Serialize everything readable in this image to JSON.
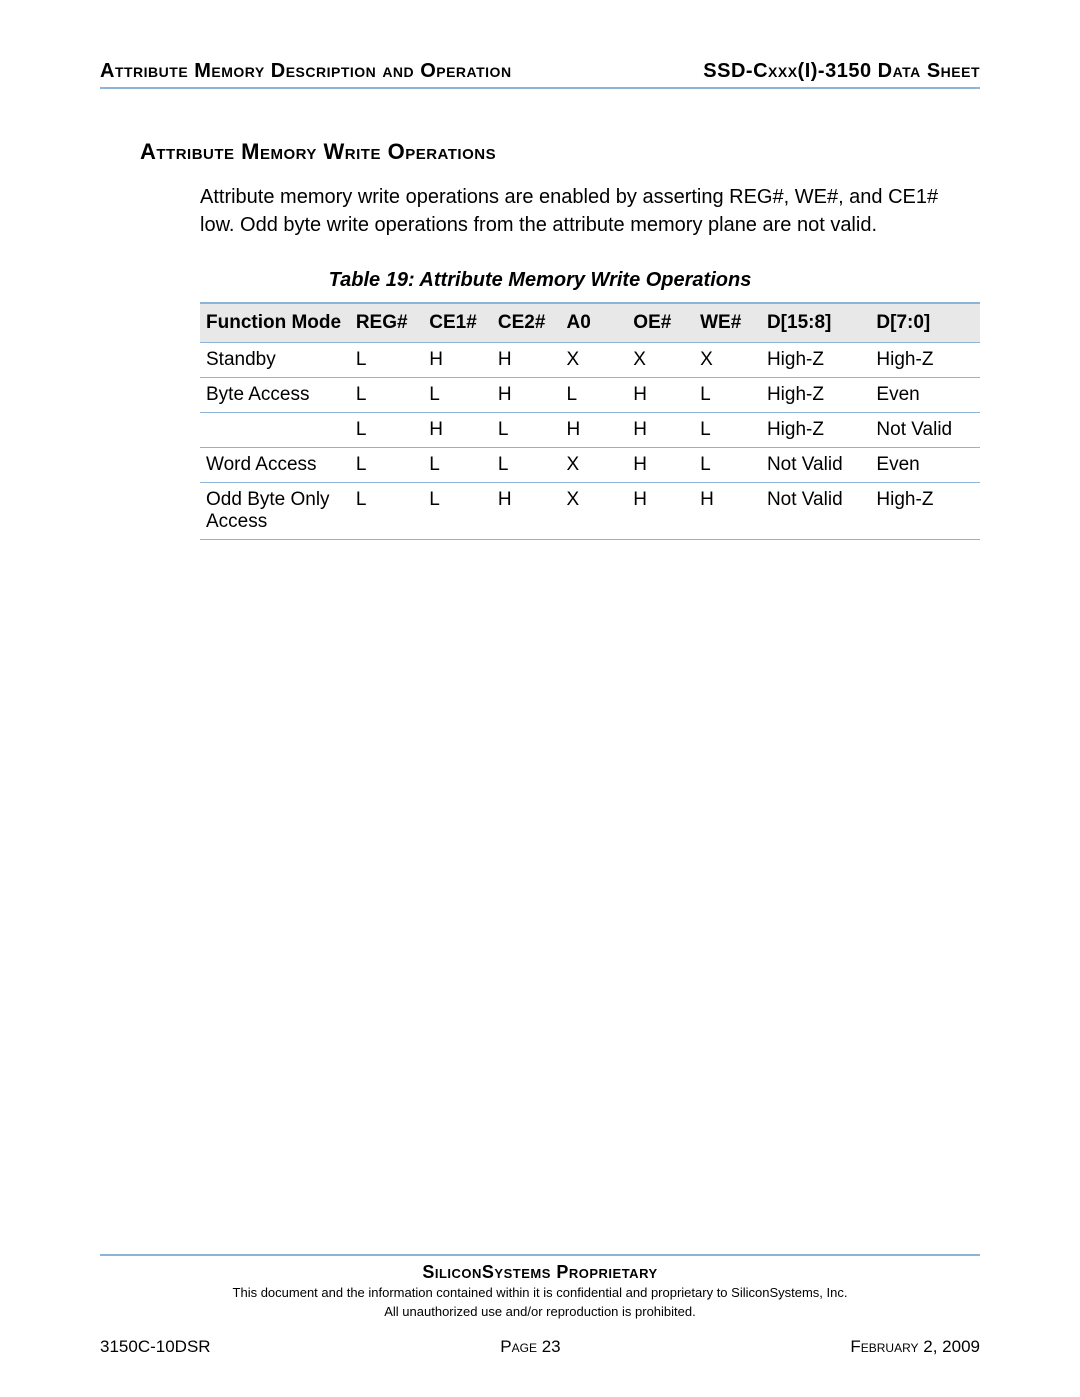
{
  "header": {
    "left": "Attribute Memory Description and Operation",
    "right": "SSD-Cxxx(I)-3150 Data Sheet"
  },
  "section_title": "Attribute Memory Write Operations",
  "body_text": "Attribute memory write operations are enabled by asserting REG#, WE#, and CE1# low. Odd byte write operations from the attribute memory plane are not valid.",
  "table": {
    "caption": "Table 19:  Attribute Memory Write Operations",
    "header_border_color": "#8db4d8",
    "header_bg": "#e8e8e8",
    "columns": [
      "Function Mode",
      "REG#",
      "CE1#",
      "CE2#",
      "A0",
      "OE#",
      "WE#",
      "D[15:8]",
      "D[7:0]"
    ],
    "rows": [
      [
        "Standby",
        "L",
        "H",
        "H",
        "X",
        "X",
        "X",
        "High-Z",
        "High-Z"
      ],
      [
        "Byte Access",
        "L",
        "L",
        "H",
        "L",
        "H",
        "L",
        "High-Z",
        "Even"
      ],
      [
        "",
        "L",
        "H",
        "L",
        "H",
        "H",
        "L",
        "High-Z",
        "Not Valid"
      ],
      [
        "Word Access",
        "L",
        "L",
        "L",
        "X",
        "H",
        "L",
        "Not Valid",
        "Even"
      ],
      [
        "Odd Byte Only Access",
        "L",
        "L",
        "H",
        "X",
        "H",
        "H",
        "Not Valid",
        "High-Z"
      ]
    ]
  },
  "footer": {
    "title": "SiliconSystems Proprietary",
    "line1": "This document and the information contained within it is confidential and proprietary to SiliconSystems, Inc.",
    "line2": "All unauthorized use and/or reproduction is prohibited.",
    "doc_id": "3150C-10DSR",
    "page": "Page 23",
    "date": "February 2, 2009"
  }
}
